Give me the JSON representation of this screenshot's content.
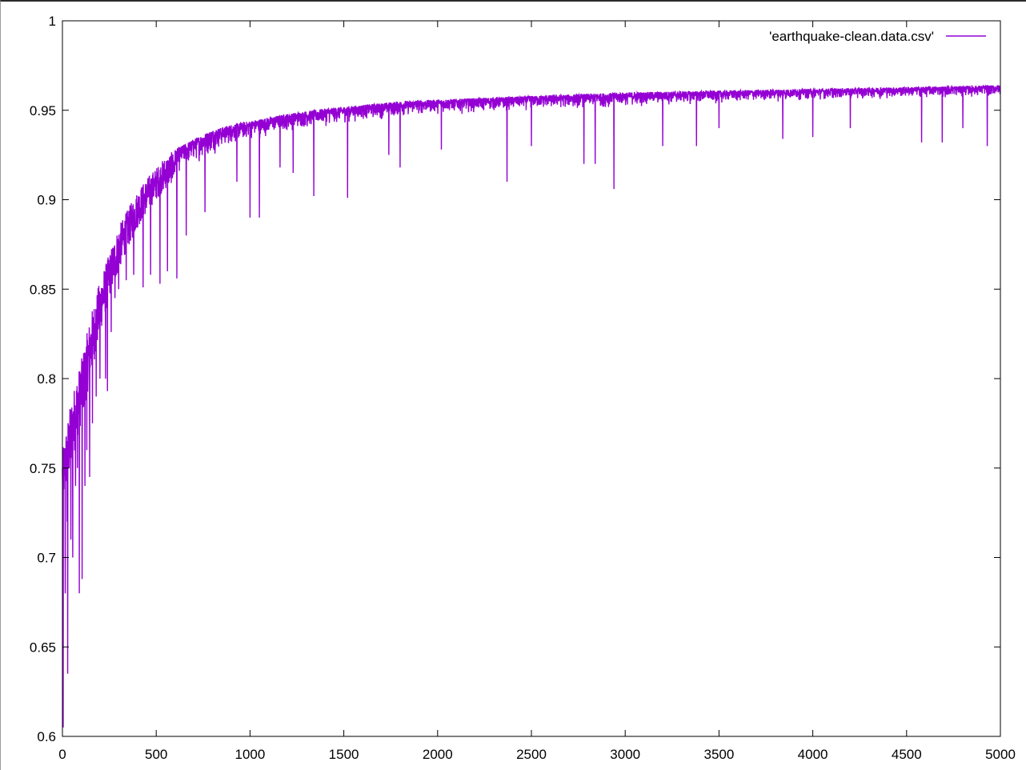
{
  "chart_data": {
    "type": "line",
    "title": "",
    "xlabel": "",
    "ylabel": "",
    "xlim": [
      0,
      5000
    ],
    "ylim": [
      0.6,
      1
    ],
    "x_ticks": [
      0,
      500,
      1000,
      1500,
      2000,
      2500,
      3000,
      3500,
      4000,
      4500,
      5000
    ],
    "x_tick_labels": [
      "0",
      "500",
      "1000",
      "1500",
      "2000",
      "2500",
      "3000",
      "3500",
      "4000",
      "4500",
      "5000"
    ],
    "y_ticks": [
      0.6,
      0.65,
      0.7,
      0.75,
      0.8,
      0.85,
      0.9,
      0.95,
      1
    ],
    "y_tick_labels": [
      "0.6",
      "0.65",
      "0.7",
      "0.75",
      "0.8",
      "0.85",
      "0.9",
      "0.95",
      "1"
    ],
    "grid": false,
    "legend": {
      "placement": "top-right",
      "entries": [
        "'earthquake-clean.data.csv'"
      ]
    },
    "series": [
      {
        "name": "'earthquake-clean.data.csv'",
        "color": "#9400d3",
        "x": [
          0,
          25,
          50,
          75,
          100,
          150,
          200,
          250,
          300,
          350,
          400,
          450,
          500,
          550,
          600,
          700,
          800,
          900,
          1000,
          1200,
          1400,
          1600,
          1800,
          2000,
          2500,
          3000,
          3500,
          4000,
          4500,
          5000
        ],
        "upper_envelope": [
          0.76,
          0.775,
          0.79,
          0.8,
          0.81,
          0.835,
          0.855,
          0.87,
          0.885,
          0.895,
          0.905,
          0.912,
          0.918,
          0.924,
          0.928,
          0.934,
          0.939,
          0.942,
          0.944,
          0.948,
          0.951,
          0.953,
          0.955,
          0.956,
          0.958,
          0.96,
          0.961,
          0.962,
          0.963,
          0.964
        ],
        "lower_envelope": [
          0.73,
          0.74,
          0.75,
          0.765,
          0.775,
          0.8,
          0.825,
          0.845,
          0.86,
          0.873,
          0.884,
          0.893,
          0.9,
          0.906,
          0.911,
          0.918,
          0.924,
          0.929,
          0.932,
          0.937,
          0.94,
          0.943,
          0.945,
          0.947,
          0.949,
          0.951,
          0.953,
          0.955,
          0.956,
          0.957
        ],
        "dips": [
          [
            4,
            0.605
          ],
          [
            15,
            0.68
          ],
          [
            25,
            0.72
          ],
          [
            28,
            0.635
          ],
          [
            45,
            0.71
          ],
          [
            55,
            0.7
          ],
          [
            70,
            0.74
          ],
          [
            80,
            0.75
          ],
          [
            90,
            0.68
          ],
          [
            105,
            0.688
          ],
          [
            120,
            0.74
          ],
          [
            130,
            0.76
          ],
          [
            145,
            0.745
          ],
          [
            160,
            0.775
          ],
          [
            180,
            0.79
          ],
          [
            200,
            0.8
          ],
          [
            230,
            0.8
          ],
          [
            240,
            0.793
          ],
          [
            260,
            0.826
          ],
          [
            280,
            0.845
          ],
          [
            300,
            0.85
          ],
          [
            340,
            0.855
          ],
          [
            380,
            0.858
          ],
          [
            430,
            0.851
          ],
          [
            470,
            0.858
          ],
          [
            520,
            0.853
          ],
          [
            560,
            0.86
          ],
          [
            610,
            0.856
          ],
          [
            660,
            0.88
          ],
          [
            760,
            0.893
          ],
          [
            930,
            0.91
          ],
          [
            1000,
            0.89
          ],
          [
            1050,
            0.89
          ],
          [
            1160,
            0.918
          ],
          [
            1230,
            0.915
          ],
          [
            1340,
            0.902
          ],
          [
            1520,
            0.901
          ],
          [
            1740,
            0.925
          ],
          [
            1800,
            0.918
          ],
          [
            2020,
            0.928
          ],
          [
            2370,
            0.91
          ],
          [
            2500,
            0.93
          ],
          [
            2780,
            0.92
          ],
          [
            2840,
            0.92
          ],
          [
            2940,
            0.906
          ],
          [
            3200,
            0.93
          ],
          [
            3380,
            0.93
          ],
          [
            3500,
            0.94
          ],
          [
            3840,
            0.934
          ],
          [
            4000,
            0.935
          ],
          [
            4200,
            0.94
          ],
          [
            4580,
            0.932
          ],
          [
            4690,
            0.932
          ],
          [
            4800,
            0.94
          ],
          [
            4930,
            0.93
          ]
        ]
      }
    ]
  }
}
